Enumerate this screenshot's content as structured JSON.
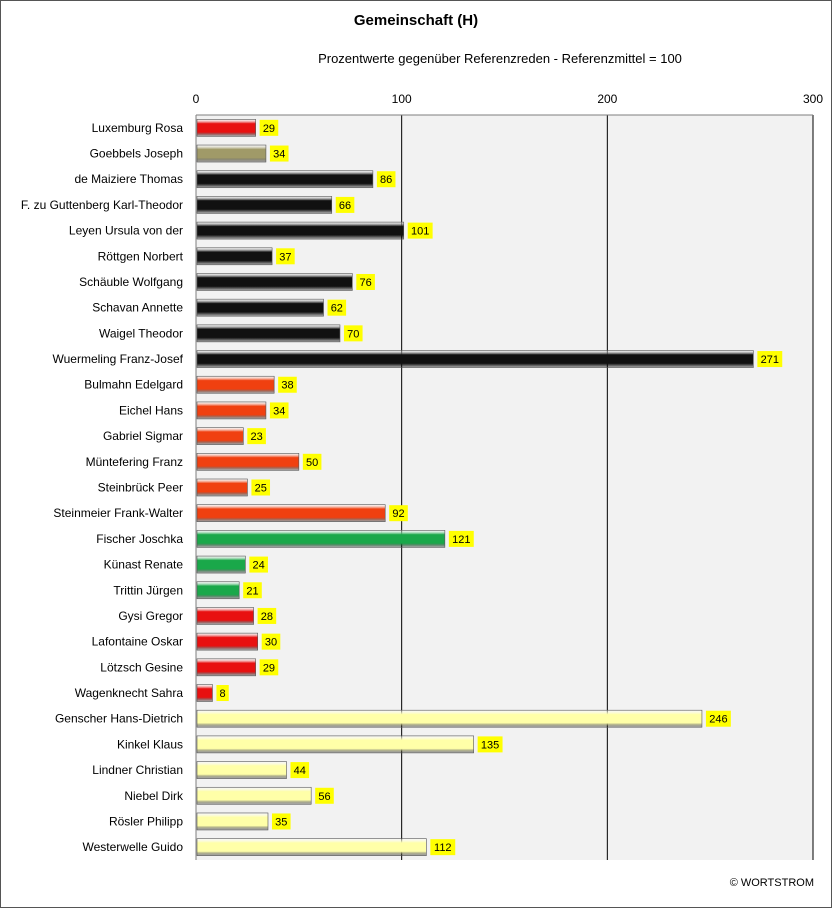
{
  "chart_data": {
    "type": "bar",
    "orientation": "horizontal",
    "title": "Gemeinschaft (H)",
    "subtitle": "Prozentwerte  gegenüber Referenzreden - Referenzmittel = 100",
    "xlim": [
      0,
      300
    ],
    "xticks": [
      0,
      100,
      200,
      300
    ],
    "grid": true,
    "categories": [
      "Luxemburg Rosa",
      "Goebbels Joseph",
      "de Maiziere Thomas",
      "F. zu Guttenberg Karl-Theodor",
      "Leyen Ursula von der",
      "Röttgen Norbert",
      "Schäuble Wolfgang",
      "Schavan Annette",
      "Waigel Theodor",
      "Wuermeling Franz-Josef",
      "Bulmahn Edelgard",
      "Eichel Hans",
      "Gabriel Sigmar",
      "Müntefering Franz",
      "Steinbrück Peer",
      "Steinmeier Frank-Walter",
      "Fischer Joschka",
      "Künast Renate",
      "Trittin Jürgen",
      "Gysi Gregor",
      "Lafontaine Oskar",
      "Lötzsch Gesine",
      "Wagenknecht Sahra",
      "Genscher Hans-Dietrich",
      "Kinkel Klaus",
      "Lindner Christian",
      "Niebel Dirk",
      "Rösler Philipp",
      "Westerwelle Guido"
    ],
    "values": [
      29,
      34,
      86,
      66,
      101,
      37,
      76,
      62,
      70,
      271,
      38,
      34,
      23,
      50,
      25,
      92,
      121,
      24,
      21,
      28,
      30,
      29,
      8,
      246,
      135,
      44,
      56,
      35,
      112
    ],
    "bar_colors": [
      "#e81010",
      "#a09a68",
      "#111111",
      "#111111",
      "#111111",
      "#111111",
      "#111111",
      "#111111",
      "#111111",
      "#111111",
      "#f04010",
      "#f04010",
      "#f04010",
      "#f04010",
      "#f04010",
      "#f04010",
      "#1aa84a",
      "#1aa84a",
      "#1aa84a",
      "#e81010",
      "#e81010",
      "#e81010",
      "#e81010",
      "#ffffa8",
      "#ffffa8",
      "#ffffa8",
      "#ffffa8",
      "#ffffa8",
      "#ffffa8"
    ],
    "data_label_bg": "#ffff00",
    "plot_bg": "#f2f2f2"
  },
  "copyright": "© WORTSTROM"
}
